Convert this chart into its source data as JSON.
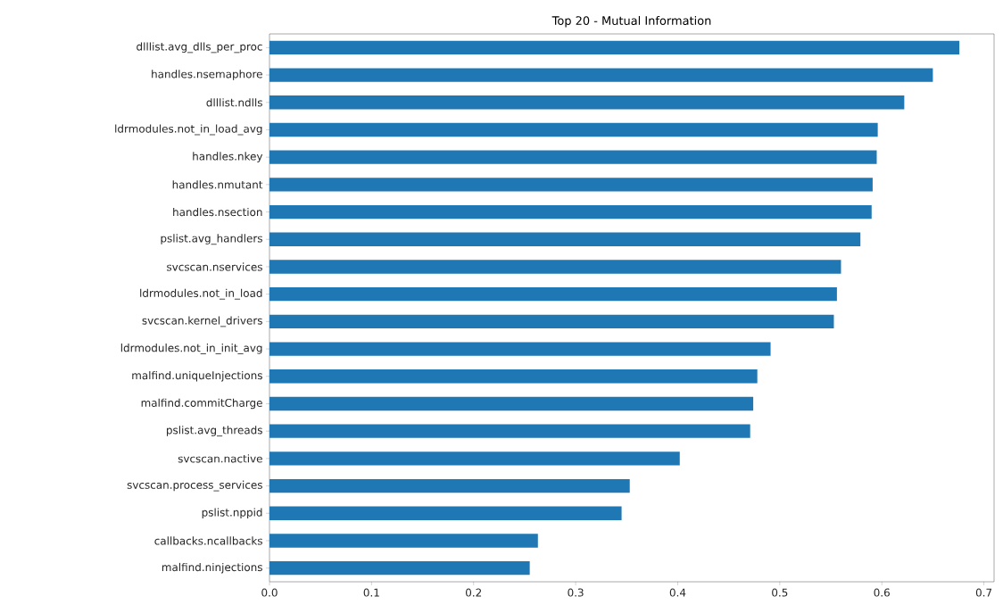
{
  "chart_data": {
    "type": "bar",
    "orientation": "horizontal",
    "title": "Top 20 - Mutual Information",
    "categories": [
      "dlllist.avg_dlls_per_proc",
      "handles.nsemaphore",
      "dlllist.ndlls",
      "ldrmodules.not_in_load_avg",
      "handles.nkey",
      "handles.nmutant",
      "handles.nsection",
      "pslist.avg_handlers",
      "svcscan.nservices",
      "ldrmodules.not_in_load",
      "svcscan.kernel_drivers",
      "ldrmodules.not_in_init_avg",
      "malfind.uniqueInjections",
      "malfind.commitCharge",
      "pslist.avg_threads",
      "svcscan.nactive",
      "svcscan.process_services",
      "pslist.nppid",
      "callbacks.ncallbacks",
      "malfind.ninjections"
    ],
    "values": [
      0.676,
      0.65,
      0.622,
      0.596,
      0.595,
      0.591,
      0.59,
      0.579,
      0.56,
      0.556,
      0.553,
      0.491,
      0.478,
      0.474,
      0.471,
      0.402,
      0.353,
      0.345,
      0.263,
      0.255
    ],
    "color": "#1f77b4",
    "xlim": [
      0,
      0.71
    ],
    "xticks": [
      {
        "value": 0,
        "label": "0.0"
      },
      0.1,
      0.2,
      0.3,
      0.4,
      0.5,
      0.6,
      0.7
    ]
  }
}
